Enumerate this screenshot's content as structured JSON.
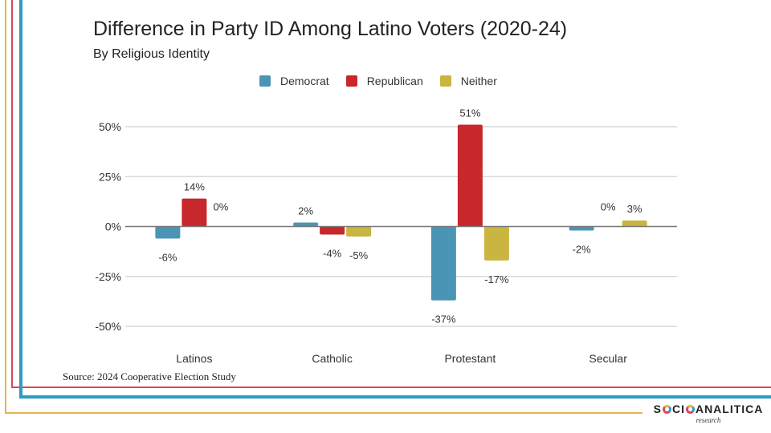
{
  "title": "Difference in Party ID Among Latino Voters (2020-24)",
  "subtitle": "By Religious Identity",
  "source": "Source: 2024 Cooperative Election Study",
  "logo": {
    "name": "SOCIOANÁLITICA",
    "part1": "S",
    "part2": "CI",
    "part3": "ANALITICA",
    "tagline": "research"
  },
  "colors": {
    "democrat": "#4a95b5",
    "republican": "#c8272b",
    "neither": "#c9b53f",
    "frame_yellow": "#e3b54f",
    "frame_red": "#d9475f",
    "frame_blue": "#2f9bc4"
  },
  "chart_data": {
    "type": "bar",
    "title": "Difference in Party ID Among Latino Voters (2020-24)",
    "subtitle": "By Religious Identity",
    "xlabel": "",
    "ylabel": "",
    "categories": [
      "Latinos",
      "Catholic",
      "Protestant",
      "Secular"
    ],
    "series": [
      {
        "name": "Democrat",
        "color": "#4a95b5",
        "values": [
          -6,
          2,
          -37,
          -2
        ]
      },
      {
        "name": "Republican",
        "color": "#c8272b",
        "values": [
          14,
          -4,
          51,
          0
        ]
      },
      {
        "name": "Neither",
        "color": "#c9b53f",
        "values": [
          0,
          -5,
          -17,
          3
        ]
      }
    ],
    "ylim": [
      -50,
      50
    ],
    "yticks": [
      50,
      25,
      0,
      -25,
      -50
    ],
    "ytick_labels": [
      "50%",
      "25%",
      "0%",
      "-25%",
      "-50%"
    ],
    "value_suffix": "%",
    "grid": true,
    "legend": "top-center"
  }
}
